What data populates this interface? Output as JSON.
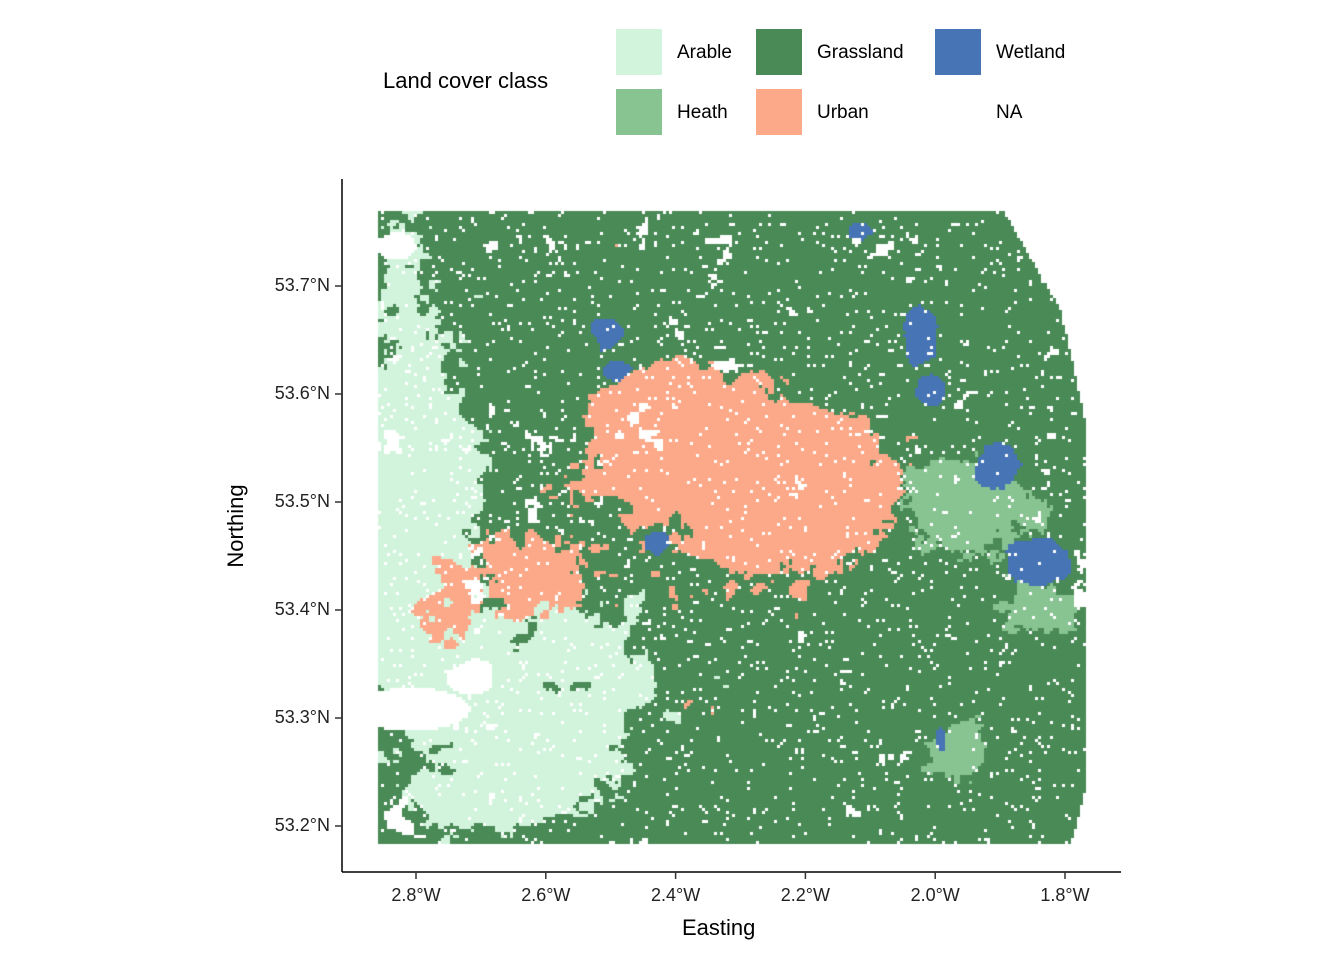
{
  "chart_data": {
    "type": "raster map",
    "xlabel": "Easting",
    "ylabel": "Northing",
    "x_ticks": [
      "2.8°W",
      "2.6°W",
      "2.4°W",
      "2.2°W",
      "2.0°W",
      "1.8°W"
    ],
    "x_tick_values": [
      -2.8,
      -2.6,
      -2.4,
      -2.2,
      -2.0,
      -1.8
    ],
    "y_ticks": [
      "53.7°N",
      "53.6°N",
      "53.5°N",
      "53.4°N",
      "53.3°N",
      "53.2°N"
    ],
    "y_tick_values": [
      53.7,
      53.6,
      53.5,
      53.4,
      53.3,
      53.2
    ],
    "xlim": [
      -2.86,
      -1.77
    ],
    "ylim": [
      53.185,
      53.77
    ],
    "grid": false,
    "legend": {
      "title": "Land cover class",
      "placement": "top",
      "items": [
        {
          "label": "Arable",
          "color": "#d2f4dc"
        },
        {
          "label": "Grassland",
          "color": "#4a8a56"
        },
        {
          "label": "Wetland",
          "color": "#4674b5"
        },
        {
          "label": "Heath",
          "color": "#88c392"
        },
        {
          "label": "Urban",
          "color": "#fca98a"
        },
        {
          "label": "NA",
          "color": "#ffffff"
        }
      ]
    }
  }
}
